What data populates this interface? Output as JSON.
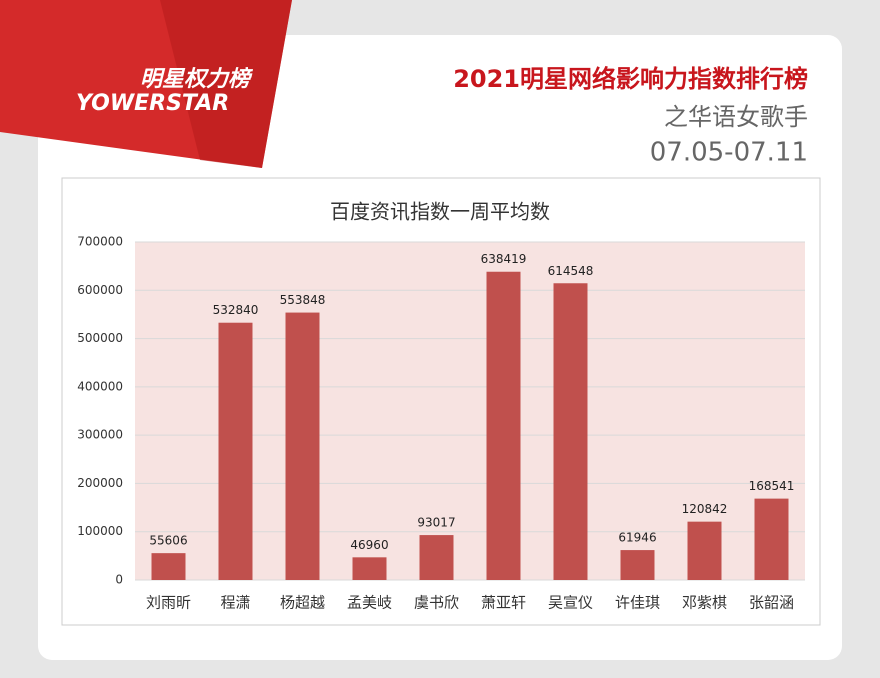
{
  "header": {
    "brand_cn": "明星权力榜",
    "brand_en": "YOWERSTAR",
    "title": "2021明星网络影响力指数排行榜",
    "subtitle": "之华语女歌手",
    "date": "07.05-07.11"
  },
  "chart_data": {
    "type": "bar",
    "title": "百度资讯指数一周平均数",
    "categories": [
      "刘雨昕",
      "程潇",
      "杨超越",
      "孟美岐",
      "虞书欣",
      "萧亚轩",
      "吴宣仪",
      "许佳琪",
      "邓紫棋",
      "张韶涵"
    ],
    "values": [
      55606,
      532840,
      553848,
      46960,
      93017,
      638419,
      614548,
      61946,
      120842,
      168541
    ],
    "color": "#c0504d",
    "ylim": [
      0,
      700000
    ],
    "yticks": [
      0,
      100000,
      200000,
      300000,
      400000,
      500000,
      600000,
      700000
    ],
    "grid": true
  }
}
